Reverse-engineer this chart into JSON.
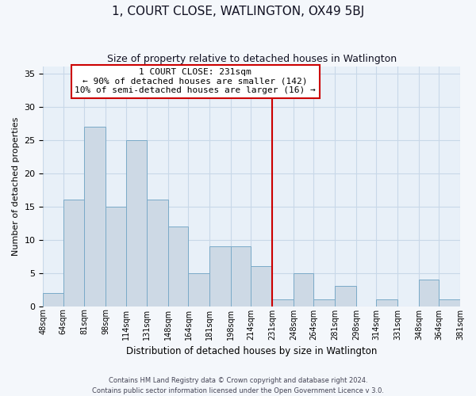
{
  "title": "1, COURT CLOSE, WATLINGTON, OX49 5BJ",
  "subtitle": "Size of property relative to detached houses in Watlington",
  "xlabel": "Distribution of detached houses by size in Watlington",
  "ylabel": "Number of detached properties",
  "footer_line1": "Contains HM Land Registry data © Crown copyright and database right 2024.",
  "footer_line2": "Contains public sector information licensed under the Open Government Licence v 3.0.",
  "annotation_title": "1 COURT CLOSE: 231sqm",
  "annotation_line1": "← 90% of detached houses are smaller (142)",
  "annotation_line2": "10% of semi-detached houses are larger (16) →",
  "property_line_x": 231,
  "bar_color": "#cdd9e5",
  "bar_edge_color": "#7aaac8",
  "line_color": "#cc0000",
  "grid_color": "#c8d8e8",
  "background_color": "#e8f0f8",
  "fig_bg_color": "#f4f7fb",
  "bin_edges": [
    48,
    64,
    81,
    98,
    114,
    131,
    148,
    164,
    181,
    198,
    214,
    231,
    248,
    264,
    281,
    298,
    314,
    331,
    348,
    364,
    381
  ],
  "bin_labels": [
    "48sqm",
    "64sqm",
    "81sqm",
    "98sqm",
    "114sqm",
    "131sqm",
    "148sqm",
    "164sqm",
    "181sqm",
    "198sqm",
    "214sqm",
    "231sqm",
    "248sqm",
    "264sqm",
    "281sqm",
    "298sqm",
    "314sqm",
    "331sqm",
    "348sqm",
    "364sqm",
    "381sqm"
  ],
  "counts": [
    2,
    16,
    27,
    15,
    25,
    16,
    12,
    5,
    9,
    9,
    6,
    1,
    5,
    1,
    3,
    0,
    1,
    0,
    4,
    1
  ],
  "ylim": [
    0,
    36
  ],
  "yticks": [
    0,
    5,
    10,
    15,
    20,
    25,
    30,
    35
  ]
}
